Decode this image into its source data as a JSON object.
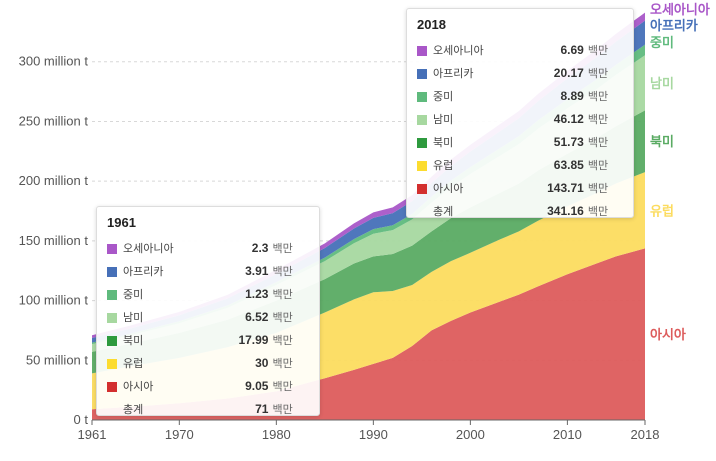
{
  "chart_data": {
    "type": "area",
    "stacked": true,
    "x_ticks": [
      1961,
      1970,
      1980,
      1990,
      2000,
      2010,
      2018
    ],
    "y_ticks": [
      {
        "value": 0,
        "label": "0 t"
      },
      {
        "value": 50,
        "label": "50 million t"
      },
      {
        "value": 100,
        "label": "100 million t"
      },
      {
        "value": 150,
        "label": "150 million t"
      },
      {
        "value": 200,
        "label": "200 million t"
      },
      {
        "value": 250,
        "label": "250 million t"
      },
      {
        "value": 300,
        "label": "300 million t"
      }
    ],
    "ylim": [
      0,
      345
    ],
    "xlim": [
      1961,
      2018
    ],
    "grid": true,
    "x": [
      1961,
      1965,
      1970,
      1975,
      1980,
      1985,
      1988,
      1990,
      1992,
      1994,
      1996,
      1998,
      2000,
      2003,
      2005,
      2007,
      2010,
      2013,
      2015,
      2018
    ],
    "series": [
      {
        "name": "아시아",
        "color": "#dd5c5c",
        "values": [
          9.05,
          11,
          14,
          18,
          24,
          35,
          42,
          47,
          52,
          62,
          75,
          83,
          90,
          99,
          105,
          112,
          122,
          131,
          137,
          143.71
        ]
      },
      {
        "name": "유럽",
        "color": "#fcdc5f",
        "values": [
          30,
          34,
          38,
          43,
          49,
          55,
          59,
          60,
          56,
          51,
          49,
          50,
          50,
          52,
          53,
          55,
          57,
          59,
          61,
          63.85
        ]
      },
      {
        "name": "북미",
        "color": "#5aab63",
        "values": [
          17.99,
          19,
          21,
          23,
          27,
          28,
          30,
          30,
          31,
          33,
          34,
          36,
          38,
          39,
          40,
          42,
          44,
          46,
          48,
          51.73
        ]
      },
      {
        "name": "남미",
        "color": "#a7d8a0",
        "values": [
          6.52,
          7,
          8,
          10,
          13,
          15,
          17,
          19,
          20,
          22,
          24,
          26,
          28,
          31,
          33,
          35,
          38,
          41,
          43,
          46.12
        ]
      },
      {
        "name": "중미",
        "color": "#5fba7d",
        "values": [
          1.23,
          1.4,
          1.7,
          2.0,
          2.5,
          3.0,
          3.5,
          3.8,
          4.1,
          4.5,
          5.0,
          5.4,
          5.8,
          6.3,
          6.7,
          7.1,
          7.6,
          8.1,
          8.4,
          8.89
        ]
      },
      {
        "name": "아프리카",
        "color": "#4670b8",
        "values": [
          3.91,
          4.3,
          5.0,
          5.8,
          6.8,
          8.0,
          8.9,
          9.5,
          10.1,
          10.8,
          11.5,
          12.2,
          13.0,
          14.2,
          15.0,
          16.0,
          17.5,
          18.7,
          19.3,
          20.17
        ]
      },
      {
        "name": "오세아니아",
        "color": "#a957c8",
        "values": [
          2.3,
          2.5,
          2.8,
          3.1,
          3.5,
          3.9,
          4.3,
          4.6,
          4.8,
          5.0,
          5.3,
          5.5,
          5.7,
          5.9,
          6.0,
          6.1,
          6.3,
          6.5,
          6.6,
          6.69
        ]
      }
    ],
    "end_labels": [
      {
        "series": "오세아니아",
        "color": "#a957c8"
      },
      {
        "series": "아프리카",
        "color": "#4670b8"
      },
      {
        "series": "중미",
        "color": "#5fba7d"
      },
      {
        "series": "남미",
        "color": "#a7d8a0"
      },
      {
        "series": "북미",
        "color": "#5aab63"
      },
      {
        "series": "유럽",
        "color": "#fcdc5f"
      },
      {
        "series": "아시아",
        "color": "#dd5c5c"
      }
    ]
  },
  "tooltip_1961": {
    "title": "1961",
    "rows": [
      {
        "name": "오세아니아",
        "value": "2.3",
        "unit": "백만",
        "color": "#a957c8"
      },
      {
        "name": "아프리카",
        "value": "3.91",
        "unit": "백만",
        "color": "#4670b8"
      },
      {
        "name": "중미",
        "value": "1.23",
        "unit": "백만",
        "color": "#5fba7d"
      },
      {
        "name": "남미",
        "value": "6.52",
        "unit": "백만",
        "color": "#a7d8a0"
      },
      {
        "name": "북미",
        "value": "17.99",
        "unit": "백만",
        "color": "#2e9a3e"
      },
      {
        "name": "유럽",
        "value": "30",
        "unit": "백만",
        "color": "#fcdc2f"
      },
      {
        "name": "아시아",
        "value": "9.05",
        "unit": "백만",
        "color": "#d32f2f"
      }
    ],
    "total": {
      "name": "총계",
      "value": "71",
      "unit": "백만"
    }
  },
  "tooltip_2018": {
    "title": "2018",
    "rows": [
      {
        "name": "오세아니아",
        "value": "6.69",
        "unit": "백만",
        "color": "#a957c8"
      },
      {
        "name": "아프리카",
        "value": "20.17",
        "unit": "백만",
        "color": "#4670b8"
      },
      {
        "name": "중미",
        "value": "8.89",
        "unit": "백만",
        "color": "#5fba7d"
      },
      {
        "name": "남미",
        "value": "46.12",
        "unit": "백만",
        "color": "#a7d8a0"
      },
      {
        "name": "북미",
        "value": "51.73",
        "unit": "백만",
        "color": "#2e9a3e"
      },
      {
        "name": "유럽",
        "value": "63.85",
        "unit": "백만",
        "color": "#fcdc2f"
      },
      {
        "name": "아시아",
        "value": "143.71",
        "unit": "백만",
        "color": "#d32f2f"
      }
    ],
    "total": {
      "name": "총계",
      "value": "341.16",
      "unit": "백만"
    }
  }
}
